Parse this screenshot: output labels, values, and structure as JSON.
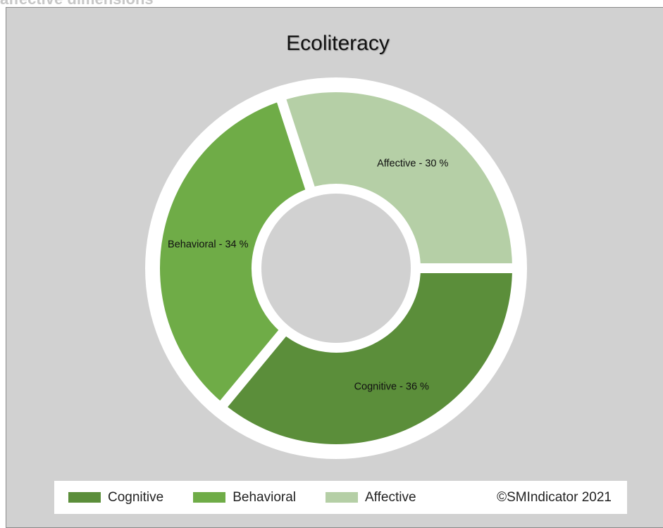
{
  "page": {
    "heading": "affective dimensions"
  },
  "chart_data": {
    "type": "pie",
    "style": "donut",
    "title": "Ecoliteracy",
    "categories": [
      "Cognitive",
      "Behavioral",
      "Affective"
    ],
    "values": [
      36,
      34,
      30
    ],
    "unit": "%",
    "colors": [
      "#5b8e3a",
      "#6fac47",
      "#b5cfa6"
    ],
    "slice_labels": [
      "Cognitive - 36 %",
      "Behavioral - 34 %",
      "Affective - 30 %"
    ],
    "legend": {
      "placement": "bottom",
      "entries": [
        "Cognitive",
        "Behavioral",
        "Affective"
      ]
    },
    "copyright": "©SMIndicator 2021",
    "background": "#d1d1d1",
    "separator_color": "#ffffff"
  }
}
